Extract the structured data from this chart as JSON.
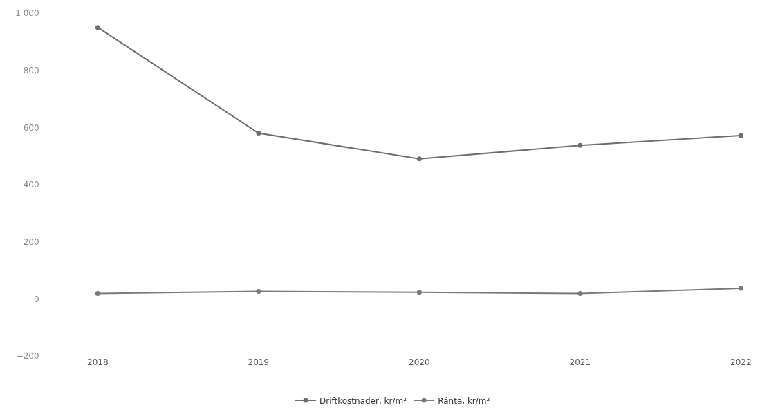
{
  "chart_data": {
    "type": "line",
    "categories": [
      "2018",
      "2019",
      "2020",
      "2021",
      "2022"
    ],
    "series": [
      {
        "name": "Driftkostnader, kr/m²",
        "color": "#6e6e6e",
        "values": [
          950,
          580,
          490,
          537,
          572
        ]
      },
      {
        "name": "Ränta, kr/m²",
        "color": "#7a7a7a",
        "values": [
          19,
          26,
          23,
          19,
          37
        ]
      }
    ],
    "ylim": [
      -200,
      1000
    ],
    "yticks": [
      -200,
      0,
      200,
      400,
      600,
      800,
      {
        "value": 1000,
        "label": "1 000"
      }
    ],
    "legend": "bottom",
    "marker": "circle",
    "line_style": "solid"
  }
}
